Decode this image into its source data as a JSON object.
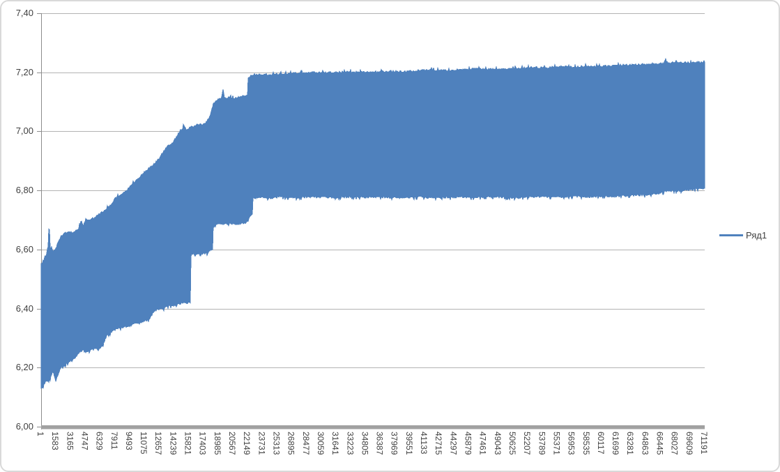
{
  "chart_data": {
    "type": "line",
    "title": "",
    "grid": true,
    "legend": {
      "position": "right",
      "entries": [
        {
          "label": "Ряд1",
          "color": "#4f81bd"
        }
      ]
    },
    "x_axis": {
      "min": 1,
      "max": 71191,
      "tick_step": 1582,
      "tick_labels": [
        "1",
        "1583",
        "3165",
        "4747",
        "6329",
        "7911",
        "9493",
        "11075",
        "12657",
        "14239",
        "15821",
        "17403",
        "18985",
        "20567",
        "22149",
        "23731",
        "25313",
        "26895",
        "28477",
        "30059",
        "31641",
        "33223",
        "34805",
        "36387",
        "37969",
        "39551",
        "41133",
        "42715",
        "44297",
        "45879",
        "47461",
        "49043",
        "50625",
        "52207",
        "53789",
        "55371",
        "56953",
        "58535",
        "60117",
        "61699",
        "63281",
        "64863",
        "66445",
        "68027",
        "69609",
        "71191"
      ]
    },
    "y_axis": {
      "min": 6.0,
      "max": 7.4,
      "tick_step": 0.2,
      "decimal_separator": ",",
      "tick_labels": [
        "7,40",
        "7,20",
        "7,00",
        "6,80",
        "6,60",
        "6,40",
        "6,20",
        "6,00"
      ]
    },
    "band_envelope": {
      "description": "Single dense oscillating series (~71k points) rendered as a solid band; sampled upper/lower envelope in data units.",
      "x": [
        1,
        225,
        524,
        674,
        824,
        973,
        1272,
        1571,
        1870,
        2169,
        2543,
        2917,
        3291,
        3665,
        4039,
        4263,
        4562,
        4787,
        5235,
        5684,
        6133,
        6581,
        7030,
        7479,
        7927,
        8376,
        8900,
        9423,
        10021,
        10620,
        11143,
        11667,
        12115,
        12639,
        13162,
        13611,
        14134,
        14658,
        15106,
        15330,
        15555,
        16078,
        16751,
        17350,
        17873,
        18172,
        18471,
        18995,
        19369,
        19518,
        19668,
        20266,
        20864,
        21388,
        21986,
        22210,
        22510,
        22734,
        23407,
        24529,
        25650,
        27146,
        28642,
        30137,
        31633,
        33128,
        34624,
        36120,
        37615,
        39111,
        40607,
        42102,
        43598,
        45093,
        46589,
        48085,
        49580,
        51076,
        52572,
        54067,
        55563,
        57058,
        58554,
        60050,
        61545,
        63041,
        64537,
        66032,
        66780,
        67004,
        67228,
        68649,
        69771,
        70519,
        71191
      ],
      "upper": [
        6.55,
        6.555,
        6.575,
        6.6,
        6.665,
        6.605,
        6.595,
        6.6,
        6.625,
        6.645,
        6.652,
        6.66,
        6.655,
        6.662,
        6.67,
        6.695,
        6.68,
        6.7,
        6.7,
        6.705,
        6.715,
        6.725,
        6.737,
        6.75,
        6.77,
        6.782,
        6.792,
        6.806,
        6.828,
        6.845,
        6.862,
        6.875,
        6.887,
        6.905,
        6.932,
        6.948,
        6.958,
        6.988,
        7.002,
        7.02,
        7.005,
        7.012,
        7.02,
        7.022,
        7.032,
        7.052,
        7.092,
        7.108,
        7.112,
        7.142,
        7.112,
        7.113,
        7.11,
        7.116,
        7.118,
        7.178,
        7.188,
        7.19,
        7.192,
        7.19,
        7.193,
        7.195,
        7.198,
        7.197,
        7.198,
        7.2,
        7.198,
        7.2,
        7.202,
        7.2,
        7.205,
        7.206,
        7.204,
        7.208,
        7.21,
        7.208,
        7.21,
        7.212,
        7.215,
        7.213,
        7.218,
        7.215,
        7.22,
        7.218,
        7.222,
        7.223,
        7.225,
        7.228,
        7.228,
        7.238,
        7.23,
        7.232,
        7.23,
        7.232,
        7.23
      ],
      "lower": [
        6.13,
        6.14,
        6.155,
        6.158,
        6.16,
        6.165,
        6.19,
        6.155,
        6.185,
        6.205,
        6.21,
        6.22,
        6.225,
        6.235,
        6.25,
        6.258,
        6.26,
        6.253,
        6.26,
        6.27,
        6.262,
        6.275,
        6.31,
        6.32,
        6.33,
        6.335,
        6.34,
        6.342,
        6.35,
        6.352,
        6.36,
        6.368,
        6.395,
        6.4,
        6.402,
        6.41,
        6.412,
        6.417,
        6.42,
        6.42,
        6.422,
        6.585,
        6.587,
        6.588,
        6.59,
        6.6,
        6.685,
        6.687,
        6.688,
        6.688,
        6.688,
        6.69,
        6.688,
        6.69,
        6.693,
        6.7,
        6.72,
        6.775,
        6.778,
        6.776,
        6.78,
        6.777,
        6.78,
        6.779,
        6.778,
        6.78,
        6.779,
        6.78,
        6.778,
        6.776,
        6.78,
        6.777,
        6.779,
        6.78,
        6.778,
        6.78,
        6.779,
        6.777,
        6.78,
        6.781,
        6.78,
        6.782,
        6.78,
        6.783,
        6.782,
        6.785,
        6.786,
        6.79,
        6.796,
        6.8,
        6.8,
        6.8,
        6.805,
        6.808,
        6.81
      ]
    },
    "colors": {
      "series": "#4f81bd",
      "gridline": "#b3b3b3",
      "axis": "#8c8c8c",
      "axis_bar": "#a1a1a1",
      "text": "#3f3f3f",
      "frame_border": "#d9d9d9",
      "background": "#ffffff"
    }
  }
}
